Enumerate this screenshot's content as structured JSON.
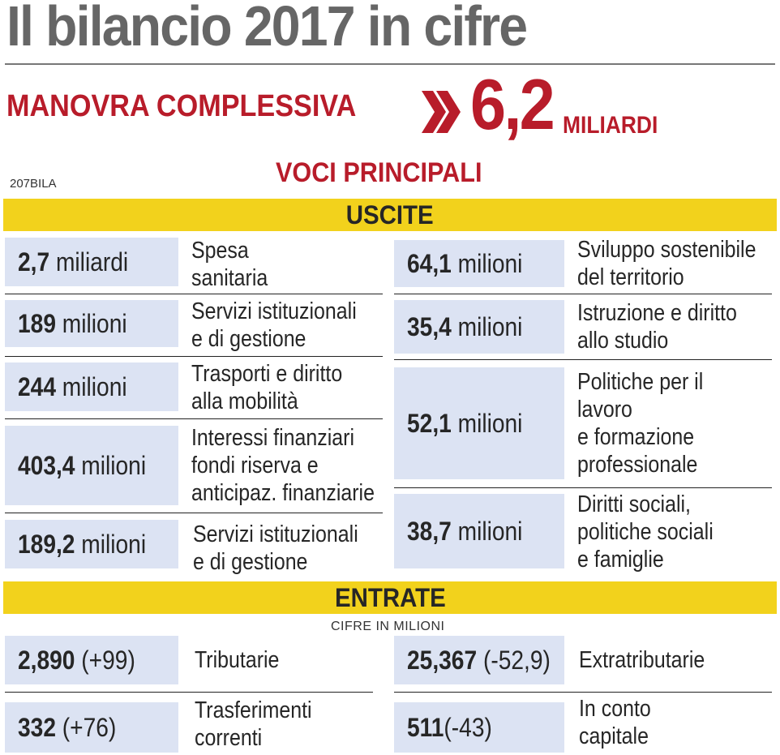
{
  "title": "Il bilancio 2017 in cifre",
  "manovra": {
    "label": "MANOVRA COMPLESSIVA",
    "value": "6,2",
    "unit": "MILIARDI"
  },
  "subtitle": "VOCI PRINCIPALI",
  "code": "207BILA",
  "uscite": {
    "header": "USCITE",
    "left": [
      {
        "bold": "2,7",
        "unit": " miliardi",
        "lines": [
          "Spesa",
          "sanitaria"
        ]
      },
      {
        "bold": "189",
        "unit": " milioni",
        "lines": [
          "Servizi istituzionali",
          "e di gestione"
        ]
      },
      {
        "bold": "244",
        "unit": " milioni",
        "lines": [
          "Trasporti e diritto",
          "alla mobilità"
        ]
      },
      {
        "bold": "403,4",
        "unit": " milioni",
        "lines": [
          "Interessi finanziari",
          "fondi riserva e",
          "anticipaz. finanziarie"
        ]
      },
      {
        "bold": "189,2",
        "unit": " milioni",
        "lines": [
          "Servizi istituzionali",
          "e di gestione"
        ]
      }
    ],
    "right": [
      {
        "bold": "64,1",
        "unit": " milioni",
        "lines": [
          "Sviluppo sostenibile",
          "del territorio"
        ]
      },
      {
        "bold": "35,4",
        "unit": " milioni",
        "lines": [
          "Istruzione e diritto",
          "allo studio"
        ]
      },
      {
        "bold": "52,1",
        "unit": " milioni",
        "lines": [
          "Politiche per il",
          "lavoro",
          "e formazione",
          "professionale"
        ]
      },
      {
        "bold": "38,7",
        "unit": " milioni",
        "lines": [
          "Diritti sociali,",
          "politiche sociali",
          "e famiglie"
        ]
      }
    ]
  },
  "entrate": {
    "header": "ENTRATE",
    "note": "CIFRE IN MILIONI",
    "left": [
      {
        "bold": "2,890",
        "unit": " (+99)",
        "lines": [
          "Tributarie"
        ]
      },
      {
        "bold": "332",
        "unit": " (+76)",
        "lines": [
          "Trasferimenti",
          "correnti"
        ]
      }
    ],
    "right": [
      {
        "bold": "25,367",
        "unit": " (-52,9)",
        "lines": [
          "Extratributarie"
        ]
      },
      {
        "bold": "511",
        "unit": "(-43)",
        "lines": [
          "In conto",
          "capitale"
        ]
      }
    ]
  },
  "colors": {
    "red": "#b81c2a",
    "yellow": "#f2d21c",
    "box": "#dce3f3"
  }
}
